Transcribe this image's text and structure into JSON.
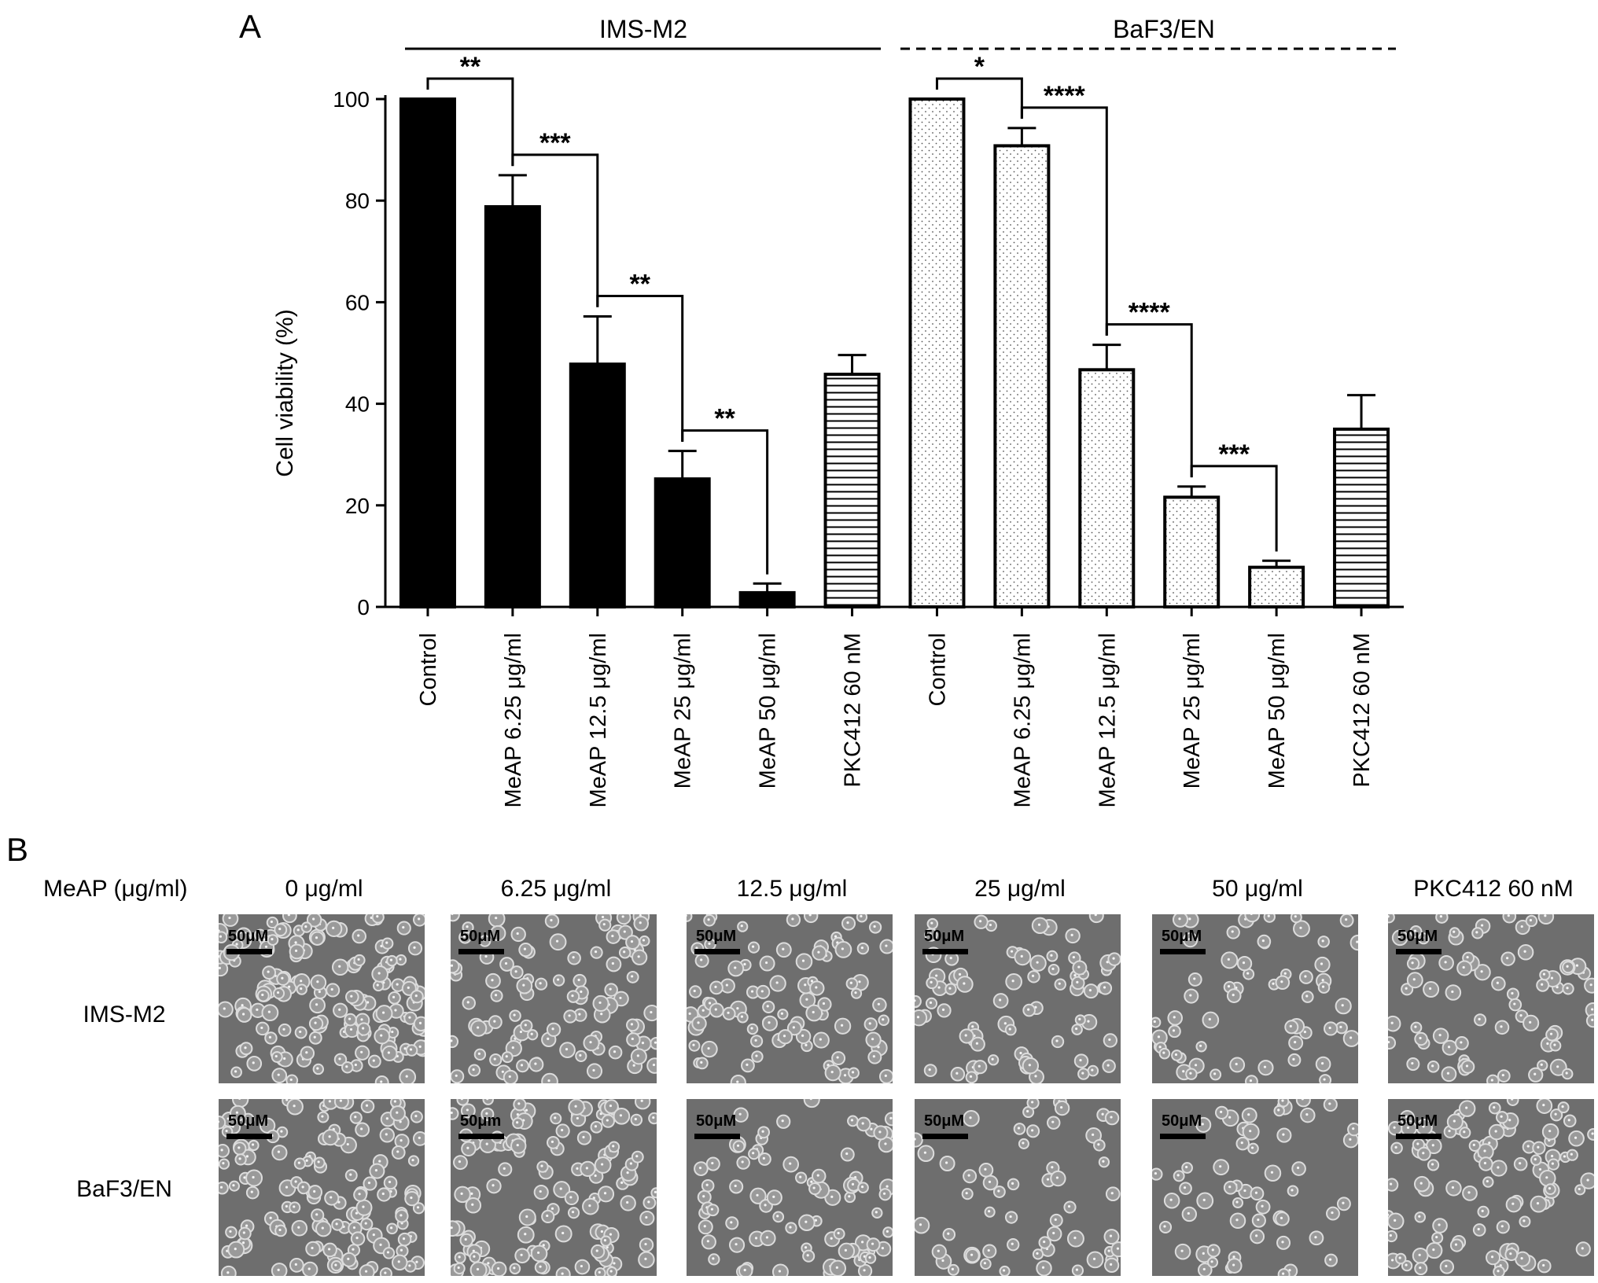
{
  "panel_a": {
    "label": "A",
    "groups": [
      {
        "name": "IMS-M2",
        "line": "solid"
      },
      {
        "name": "BaF3/EN",
        "line": "dashed"
      }
    ]
  },
  "chart_data": {
    "type": "bar",
    "ylabel": "Cell viability (%)",
    "ylim": [
      0,
      100
    ],
    "yticks": [
      0,
      20,
      40,
      60,
      80,
      100
    ],
    "categories": [
      "Control",
      "MeAP 6.25 μg/ml",
      "MeAP 12.5 μg/ml",
      "MeAP 25 μg/ml",
      "MeAP 50 μg/ml",
      "PKC412 60 nM",
      "Control",
      "MeAP 6.25 μg/ml",
      "MeAP 12.5 μg/ml",
      "MeAP 25 μg/ml",
      "MeAP 50 μg/ml",
      "PKC412 60 nM"
    ],
    "series": [
      {
        "values": [
          100,
          78.8,
          47.8,
          25.2,
          2.8,
          45.8,
          null,
          null,
          null,
          null,
          null,
          null
        ],
        "errors": [
          0,
          6.2,
          9.4,
          5.5,
          1.8,
          3.8,
          null,
          null,
          null,
          null,
          null,
          null
        ],
        "fills": [
          "solid",
          "solid",
          "solid",
          "solid",
          "solid",
          "hlines",
          null,
          null,
          null,
          null,
          null,
          null
        ]
      },
      {
        "values": [
          null,
          null,
          null,
          null,
          null,
          null,
          100,
          90.8,
          46.7,
          21.6,
          7.8,
          35.0
        ],
        "errors": [
          null,
          null,
          null,
          null,
          null,
          null,
          0,
          3.5,
          4.9,
          2.1,
          1.3,
          6.7
        ],
        "fills": [
          null,
          null,
          null,
          null,
          null,
          null,
          "dots",
          "dots",
          "dots",
          "dots",
          "dots",
          "hlines"
        ]
      }
    ],
    "significance": [
      {
        "from": 0,
        "to": 1,
        "label": "**"
      },
      {
        "from": 1,
        "to": 2,
        "label": "***"
      },
      {
        "from": 2,
        "to": 3,
        "label": "**"
      },
      {
        "from": 3,
        "to": 4,
        "label": "**"
      },
      {
        "from": 6,
        "to": 7,
        "label": "*"
      },
      {
        "from": 7,
        "to": 8,
        "label": "****"
      },
      {
        "from": 8,
        "to": 9,
        "label": "****"
      },
      {
        "from": 9,
        "to": 10,
        "label": "***"
      }
    ]
  },
  "panel_b": {
    "label": "B",
    "header_label": "MeAP (μg/ml)",
    "columns": [
      "0 μg/ml",
      "6.25 μg/ml",
      "12.5 μg/ml",
      "25 μg/ml",
      "50 μg/ml",
      "PKC412 60 nM"
    ],
    "rows": [
      {
        "name": "IMS-M2",
        "scale_labels": [
          "50μM",
          "50μM",
          "50μM",
          "50μM",
          "50μM",
          "50μM"
        ]
      },
      {
        "name": "BaF3/EN",
        "scale_labels": [
          "50μM",
          "50μm",
          "50μM",
          "50μM",
          "50μM",
          "50μM"
        ]
      }
    ],
    "micrograph_description_color": "#6e6e6e"
  }
}
